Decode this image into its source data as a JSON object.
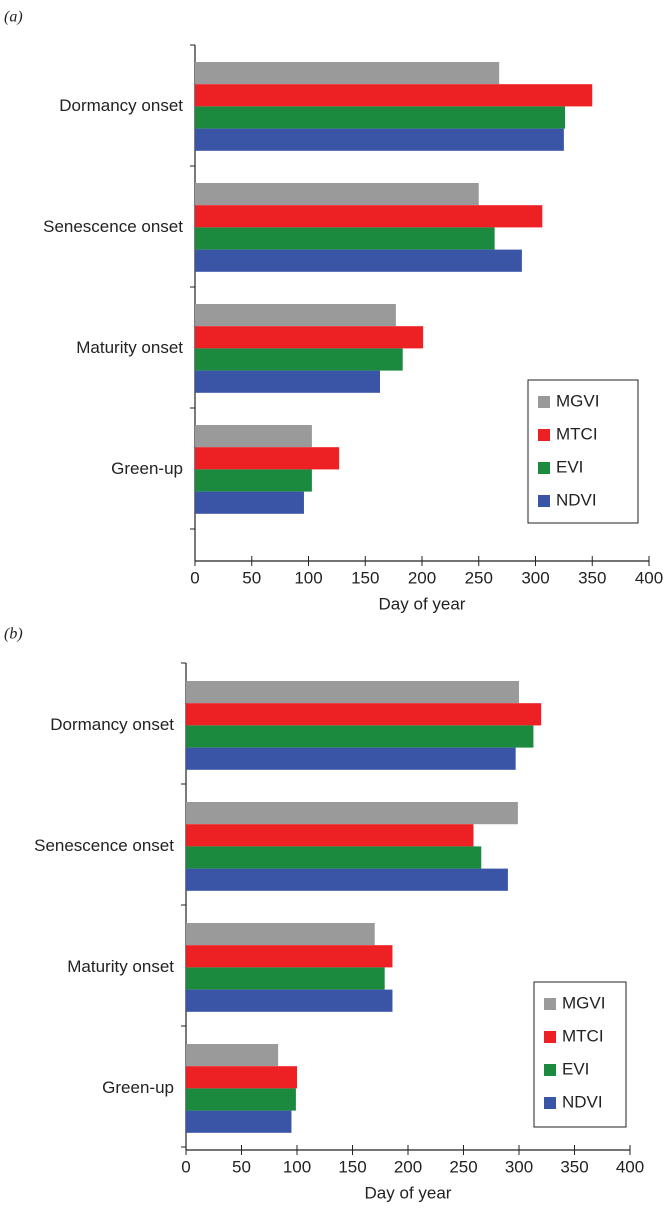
{
  "chart_data": [
    {
      "type": "bar",
      "panel": "(a)",
      "orientation": "horizontal",
      "categories": [
        "Green-up",
        "Maturity onset",
        "Senescence onset",
        "Dormancy onset"
      ],
      "series": [
        {
          "name": "MGVI",
          "color": "#9a9a9a",
          "values": [
            103,
            177,
            250,
            268
          ]
        },
        {
          "name": "MTCI",
          "color": "#ed2024",
          "values": [
            127,
            201,
            306,
            350
          ]
        },
        {
          "name": "EVI",
          "color": "#1b8a3e",
          "values": [
            103,
            183,
            264,
            326
          ]
        },
        {
          "name": "NDVI",
          "color": "#3a55a6",
          "values": [
            96,
            163,
            288,
            325
          ]
        }
      ],
      "xlabel": "Day of year",
      "xlim": [
        0,
        400
      ],
      "xticks": [
        0,
        50,
        100,
        150,
        200,
        250,
        300,
        350,
        400
      ],
      "legend": "lower right"
    },
    {
      "type": "bar",
      "panel": "(b)",
      "orientation": "horizontal",
      "categories": [
        "Green-up",
        "Maturity onset",
        "Senescence onset",
        "Dormancy onset"
      ],
      "series": [
        {
          "name": "MGVI",
          "color": "#9a9a9a",
          "values": [
            83,
            170,
            299,
            300
          ]
        },
        {
          "name": "MTCI",
          "color": "#ed2024",
          "values": [
            100,
            186,
            259,
            320
          ]
        },
        {
          "name": "EVI",
          "color": "#1b8a3e",
          "values": [
            99,
            179,
            266,
            313
          ]
        },
        {
          "name": "NDVI",
          "color": "#3a55a6",
          "values": [
            95,
            186,
            290,
            297
          ]
        }
      ],
      "xlabel": "Day of year",
      "xlim": [
        0,
        400
      ],
      "xticks": [
        0,
        50,
        100,
        150,
        200,
        250,
        300,
        350,
        400
      ],
      "legend": "lower right"
    }
  ]
}
